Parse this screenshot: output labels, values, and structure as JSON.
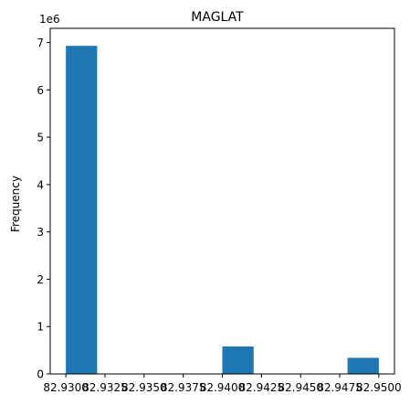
{
  "chart_data": {
    "type": "histogram",
    "title": "MAGLAT",
    "xlabel": "",
    "ylabel": "Frequency",
    "y_multiplier_label": "1e6",
    "x_ticks": [
      82.93,
      82.9325,
      82.935,
      82.9375,
      82.94,
      82.9425,
      82.945,
      82.9475,
      82.95
    ],
    "x_tick_labels": [
      "82.9300",
      "82.9325",
      "82.9350",
      "82.9375",
      "82.9400",
      "82.9425",
      "82.9450",
      "82.9475",
      "82.9500"
    ],
    "y_ticks": [
      0,
      1,
      2,
      3,
      4,
      5,
      6,
      7
    ],
    "y_tick_labels": [
      "0",
      "1",
      "2",
      "3",
      "4",
      "5",
      "6",
      "7"
    ],
    "xlim": [
      82.929,
      82.951
    ],
    "ylim": [
      0,
      7.3
    ],
    "bins": [
      {
        "x0": 82.93,
        "x1": 82.932,
        "value": 6.93
      },
      {
        "x0": 82.932,
        "x1": 82.934,
        "value": 0
      },
      {
        "x0": 82.934,
        "x1": 82.936,
        "value": 0
      },
      {
        "x0": 82.936,
        "x1": 82.938,
        "value": 0
      },
      {
        "x0": 82.938,
        "x1": 82.94,
        "value": 0
      },
      {
        "x0": 82.94,
        "x1": 82.942,
        "value": 0.58
      },
      {
        "x0": 82.942,
        "x1": 82.944,
        "value": 0
      },
      {
        "x0": 82.944,
        "x1": 82.946,
        "value": 0
      },
      {
        "x0": 82.946,
        "x1": 82.948,
        "value": 0
      },
      {
        "x0": 82.948,
        "x1": 82.95,
        "value": 0.34
      }
    ],
    "bar_color": "#1f77b4",
    "grid": false,
    "legend": "none"
  }
}
